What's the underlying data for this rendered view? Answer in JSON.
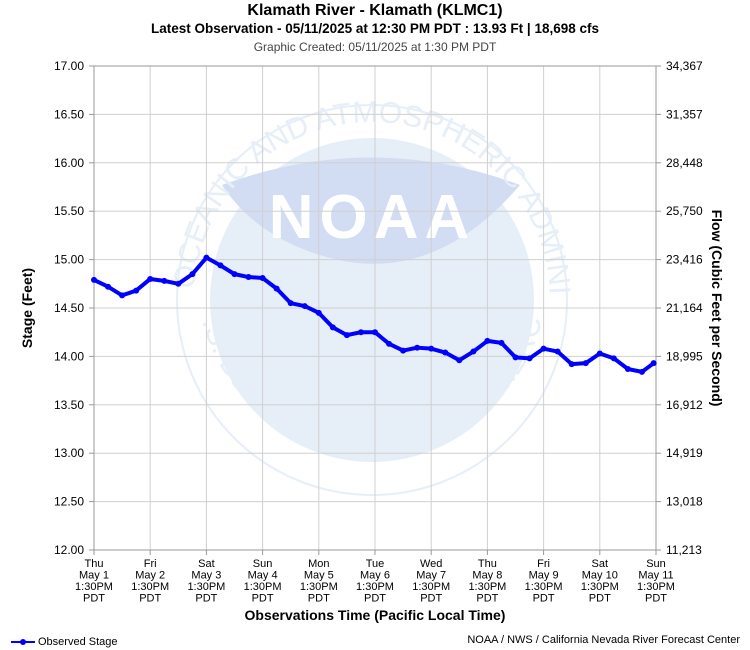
{
  "header": {
    "title": "Klamath River - Klamath (KLMC1)",
    "subtitle": "Latest Observation - 05/11/2025 at 12:30 PM PDT : 13.93 Ft | 18,698 cfs",
    "created": "Graphic Created: 05/11/2025 at 1:30 PM PDT"
  },
  "footer": {
    "legend_label": "Observed Stage",
    "credit": "NOAA / NWS / California Nevada River Forecast Center"
  },
  "colors": {
    "series": "#0000ff",
    "grid": "#d0d0d0",
    "watermark": "#e6eef8"
  },
  "watermark": {
    "logo_text": "NOAA",
    "ring_top": "NATIONAL OCEANIC AND ATMOSPHERIC ADMINISTRATION",
    "ring_bottom": "U.S. DEPARTMENT OF COMMERCE"
  },
  "chart_data": {
    "type": "line",
    "xlabel": "Observations Time (Pacific Local Time)",
    "ylabel": "Stage (Feet)",
    "y2label": "Flow (Cubic Feet per Second)",
    "ylim": [
      12.0,
      17.0
    ],
    "grid": true,
    "legend_position": "bottom-left",
    "y_ticks": [
      "12.00",
      "12.50",
      "13.00",
      "13.50",
      "14.00",
      "14.50",
      "15.00",
      "15.50",
      "16.00",
      "16.50",
      "17.00"
    ],
    "y2_ticks": [
      "11,213",
      "13,018",
      "14,919",
      "16,912",
      "18,995",
      "21,164",
      "23,416",
      "25,750",
      "28,448",
      "31,357",
      "34,367"
    ],
    "x_ticks": [
      [
        "Thu",
        "May 1",
        "1:30PM",
        "PDT"
      ],
      [
        "Fri",
        "May 2",
        "1:30PM",
        "PDT"
      ],
      [
        "Sat",
        "May 3",
        "1:30PM",
        "PDT"
      ],
      [
        "Sun",
        "May 4",
        "1:30PM",
        "PDT"
      ],
      [
        "Mon",
        "May 5",
        "1:30PM",
        "PDT"
      ],
      [
        "Tue",
        "May 6",
        "1:30PM",
        "PDT"
      ],
      [
        "Wed",
        "May 7",
        "1:30PM",
        "PDT"
      ],
      [
        "Thu",
        "May 8",
        "1:30PM",
        "PDT"
      ],
      [
        "Fri",
        "May 9",
        "1:30PM",
        "PDT"
      ],
      [
        "Sat",
        "May 10",
        "1:30PM",
        "PDT"
      ],
      [
        "Sun",
        "May 11",
        "1:30PM",
        "PDT"
      ]
    ],
    "series": [
      {
        "name": "Observed Stage",
        "x": [
          "2025-05-01 13:30",
          "2025-05-01 19:30",
          "2025-05-02 01:30",
          "2025-05-02 07:30",
          "2025-05-02 13:30",
          "2025-05-02 19:30",
          "2025-05-03 01:30",
          "2025-05-03 07:30",
          "2025-05-03 13:30",
          "2025-05-03 19:30",
          "2025-05-04 01:30",
          "2025-05-04 07:30",
          "2025-05-04 13:30",
          "2025-05-04 19:30",
          "2025-05-05 01:30",
          "2025-05-05 07:30",
          "2025-05-05 13:30",
          "2025-05-05 19:30",
          "2025-05-06 01:30",
          "2025-05-06 07:30",
          "2025-05-06 13:30",
          "2025-05-06 19:30",
          "2025-05-07 01:30",
          "2025-05-07 07:30",
          "2025-05-07 13:30",
          "2025-05-07 19:30",
          "2025-05-08 01:30",
          "2025-05-08 07:30",
          "2025-05-08 13:30",
          "2025-05-08 19:30",
          "2025-05-09 01:30",
          "2025-05-09 07:30",
          "2025-05-09 13:30",
          "2025-05-09 19:30",
          "2025-05-10 01:30",
          "2025-05-10 07:30",
          "2025-05-10 13:30",
          "2025-05-10 19:30",
          "2025-05-11 01:30",
          "2025-05-11 07:30",
          "2025-05-11 12:30"
        ],
        "values": [
          14.79,
          14.72,
          14.63,
          14.68,
          14.8,
          14.78,
          14.75,
          14.85,
          15.02,
          14.94,
          14.85,
          14.82,
          14.81,
          14.7,
          14.55,
          14.52,
          14.45,
          14.3,
          14.22,
          14.25,
          14.25,
          14.13,
          14.06,
          14.09,
          14.08,
          14.04,
          13.96,
          14.05,
          14.16,
          14.14,
          13.99,
          13.98,
          14.08,
          14.05,
          13.92,
          13.93,
          14.03,
          13.98,
          13.87,
          13.84,
          13.93
        ]
      }
    ]
  }
}
